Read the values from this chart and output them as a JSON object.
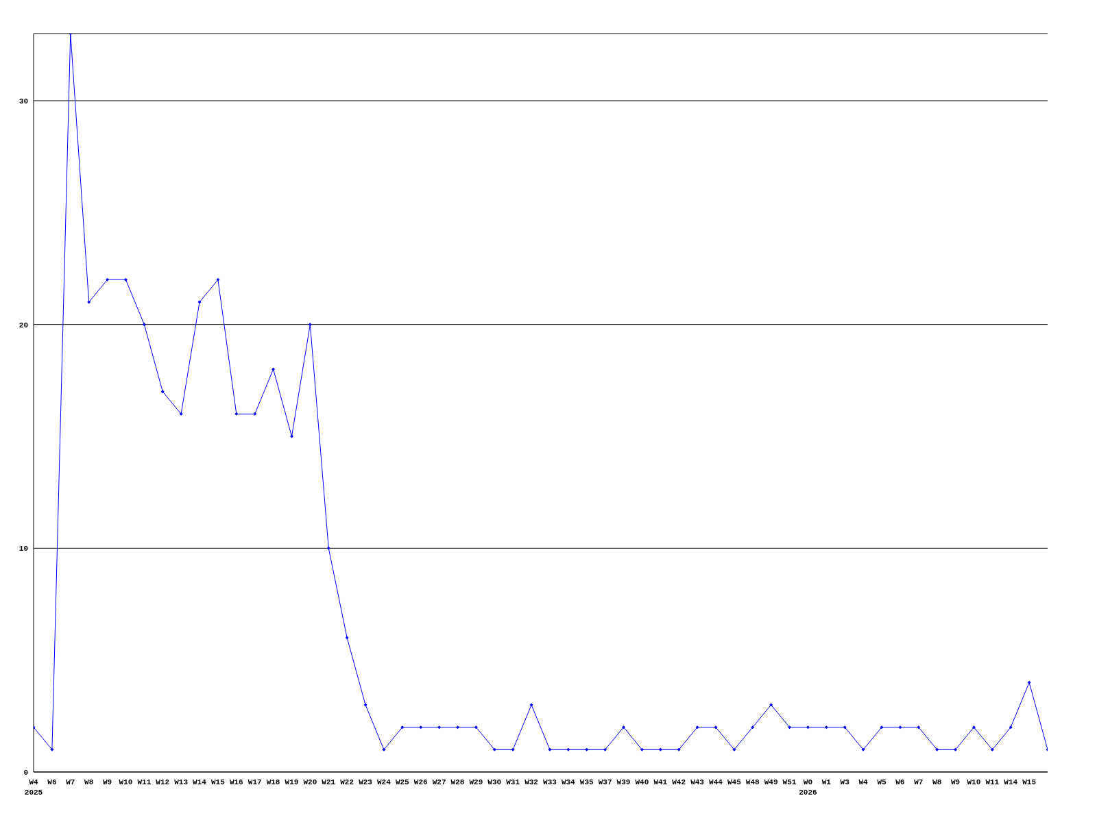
{
  "chart_data": {
    "type": "line",
    "categories": [
      "W4\n2025",
      "W6",
      "W7",
      "W8",
      "W9",
      "W10",
      "W11",
      "W12",
      "W13",
      "W14",
      "W15",
      "W16",
      "W17",
      "W18",
      "W19",
      "W20",
      "W21",
      "W22",
      "W23",
      "W24",
      "W25",
      "W26",
      "W27",
      "W28",
      "W29",
      "W30",
      "W31",
      "W32",
      "W33",
      "W34",
      "W35",
      "W37",
      "W39",
      "W40",
      "W41",
      "W42",
      "W43",
      "W44",
      "W45",
      "W48",
      "W49",
      "W51",
      "W0\n2026",
      "W1",
      "W3",
      "W4",
      "W5",
      "W6",
      "W7",
      "W8",
      "W9",
      "W10",
      "W11",
      "W14",
      "W15",
      null
    ],
    "series": [
      {
        "color": "#0000ff",
        "values": [
          2,
          1,
          33,
          21,
          22,
          22,
          20,
          17,
          16,
          21,
          22,
          16,
          16,
          18,
          15,
          20,
          10,
          6,
          3,
          1,
          2,
          2,
          2,
          2,
          2,
          1,
          1,
          3,
          1,
          1,
          1,
          1,
          2,
          1,
          1,
          1,
          2,
          2,
          1,
          2,
          3,
          2,
          2,
          2,
          2,
          1,
          2,
          2,
          2,
          1,
          1,
          2,
          1,
          2,
          4,
          1
        ]
      }
    ],
    "ylim": [
      0,
      33
    ],
    "yticks": [
      0,
      10,
      20,
      30
    ],
    "grid": "y",
    "legend": false,
    "marker": "diamond",
    "line_style": "solid"
  }
}
